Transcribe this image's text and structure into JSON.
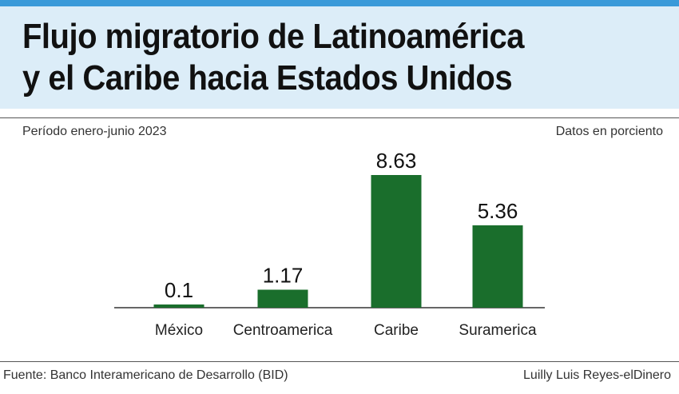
{
  "colors": {
    "accent_strip": "#3a9ad9",
    "title_band": "#dcedf8",
    "bar": "#1a6e2c",
    "baseline": "#333333"
  },
  "header": {
    "title_line1": "Flujo migratorio de Latinoamérica",
    "title_line2": "y el Caribe hacia Estados Unidos"
  },
  "subheader": {
    "period": "Período enero-junio 2023",
    "units": "Datos en porciento"
  },
  "footer": {
    "source": "Fuente: Banco Interamericano de Desarrollo (BID)",
    "credit": "Luilly Luis Reyes-elDinero"
  },
  "chart_data": {
    "type": "bar",
    "categories": [
      "México",
      "Centroamerica",
      "Caribe",
      "Suramerica"
    ],
    "values": [
      0.1,
      1.17,
      8.63,
      5.36
    ],
    "value_labels": [
      "0.1",
      "1.17",
      "8.63",
      "5.36"
    ],
    "ylim": [
      0,
      8.63
    ],
    "grid": false,
    "legend": "none"
  }
}
